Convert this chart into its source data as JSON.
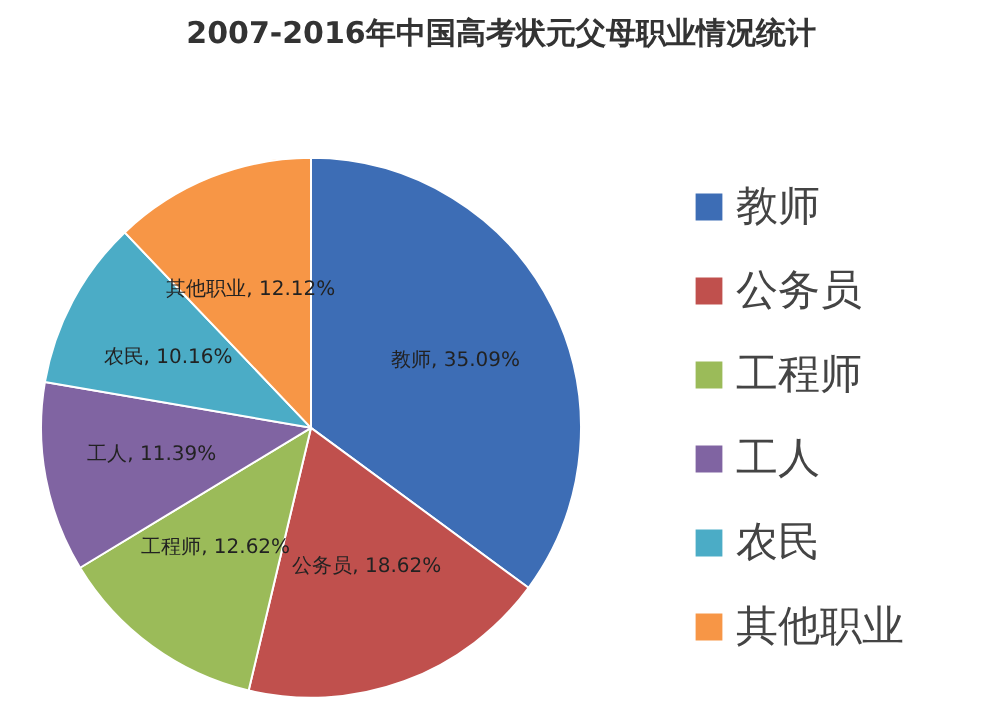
{
  "chart_data": {
    "type": "pie",
    "title": "2007-2016年中国高考状元父母职业情况统计",
    "categories": [
      "教师",
      "公务员",
      "工程师",
      "工人",
      "农民",
      "其他职业"
    ],
    "values": [
      35.09,
      18.62,
      12.62,
      11.39,
      10.16,
      12.12
    ],
    "colors": [
      "#3d6db5",
      "#c0504d",
      "#9bbb59",
      "#8064a2",
      "#4bacc6",
      "#f79646"
    ],
    "value_labels": [
      "教师, 35.09%",
      "公务员, 18.62%",
      "工程师, 12.62%",
      "工人, 11.39%",
      "农民, 10.16%",
      "其他职业, 12.12%"
    ],
    "legend": "right"
  }
}
